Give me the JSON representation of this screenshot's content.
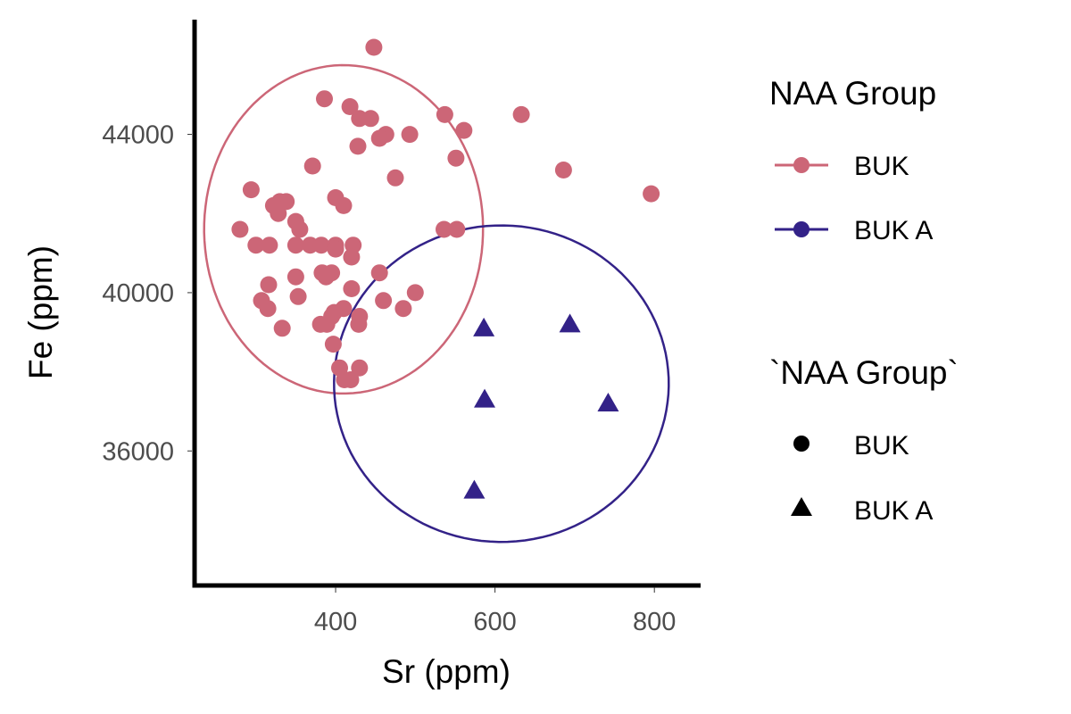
{
  "chart_data": {
    "type": "scatter",
    "xlabel": "Sr (ppm)",
    "ylabel": "Fe (ppm)",
    "x_ticks": [
      400,
      600,
      800
    ],
    "y_ticks": [
      36000,
      40000,
      44000
    ],
    "xlim": [
      223,
      858
    ],
    "ylim": [
      32600,
      46900
    ],
    "x_tick_labels": [
      "400",
      "600",
      "800"
    ],
    "y_tick_labels": [
      "36000",
      "40000",
      "44000"
    ],
    "grid": false,
    "legend_position": "right",
    "series": [
      {
        "name": "BUK",
        "color": "#CC6677",
        "marker": "circle",
        "points": [
          [
            448,
            46200
          ],
          [
            386,
            44900
          ],
          [
            418,
            44700
          ],
          [
            537,
            44500
          ],
          [
            633,
            44500
          ],
          [
            430,
            44400
          ],
          [
            444,
            44400
          ],
          [
            463,
            44000
          ],
          [
            493,
            44000
          ],
          [
            561,
            44100
          ],
          [
            455,
            43900
          ],
          [
            428,
            43700
          ],
          [
            551,
            43400
          ],
          [
            371,
            43200
          ],
          [
            686,
            43100
          ],
          [
            475,
            42900
          ],
          [
            796,
            42500
          ],
          [
            294,
            42600
          ],
          [
            400,
            42400
          ],
          [
            330,
            42300
          ],
          [
            338,
            42300
          ],
          [
            322,
            42200
          ],
          [
            410,
            42200
          ],
          [
            328,
            42000
          ],
          [
            350,
            41800
          ],
          [
            355,
            41600
          ],
          [
            280,
            41600
          ],
          [
            536,
            41600
          ],
          [
            552,
            41600
          ],
          [
            300,
            41200
          ],
          [
            317,
            41200
          ],
          [
            350,
            41200
          ],
          [
            368,
            41200
          ],
          [
            382,
            41200
          ],
          [
            400,
            41200
          ],
          [
            422,
            41200
          ],
          [
            400,
            41100
          ],
          [
            420,
            40900
          ],
          [
            383,
            40500
          ],
          [
            395,
            40500
          ],
          [
            455,
            40500
          ],
          [
            350,
            40400
          ],
          [
            388,
            40400
          ],
          [
            316,
            40200
          ],
          [
            420,
            40100
          ],
          [
            500,
            40000
          ],
          [
            307,
            39800
          ],
          [
            353,
            39900
          ],
          [
            460,
            39800
          ],
          [
            410,
            39600
          ],
          [
            315,
            39600
          ],
          [
            398,
            39500
          ],
          [
            430,
            39400
          ],
          [
            485,
            39600
          ],
          [
            395,
            39400
          ],
          [
            381,
            39200
          ],
          [
            389,
            39200
          ],
          [
            429,
            39200
          ],
          [
            333,
            39100
          ],
          [
            397,
            38700
          ],
          [
            405,
            38100
          ],
          [
            430,
            38100
          ],
          [
            411,
            37800
          ],
          [
            419,
            37800
          ]
        ]
      },
      {
        "name": "BUK A",
        "color": "#332288",
        "marker": "triangle",
        "points": [
          [
            586,
            39100
          ],
          [
            694,
            39200
          ],
          [
            587,
            37300
          ],
          [
            742,
            37200
          ],
          [
            574,
            35000
          ]
        ]
      }
    ],
    "ellipses": [
      {
        "series": "BUK",
        "color": "#CC6677",
        "cx": 410,
        "cy": 41600,
        "rx": 175,
        "ry": 4150,
        "rot": -0.35
      },
      {
        "series": "BUK A",
        "color": "#332288",
        "cx": 608,
        "cy": 37700,
        "rx": 210,
        "ry": 4000,
        "rot": -0.12
      }
    ],
    "legends": [
      {
        "title": "NAA Group",
        "type": "color",
        "entries": [
          "BUK",
          "BUK A"
        ],
        "colors": [
          "#CC6677",
          "#332288"
        ]
      },
      {
        "title": "`NAA Group`",
        "type": "shape",
        "entries": [
          "BUK",
          "BUK A"
        ],
        "shapes": [
          "circle",
          "triangle"
        ]
      }
    ]
  }
}
